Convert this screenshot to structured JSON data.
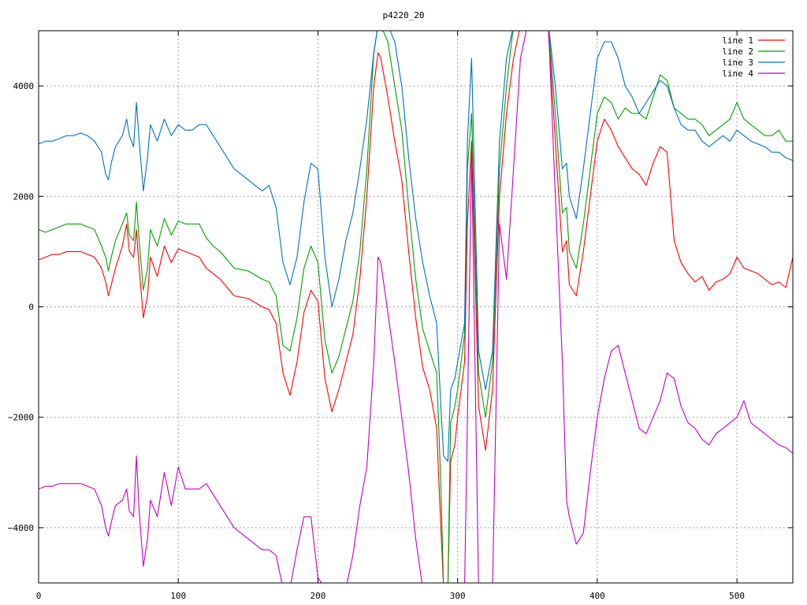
{
  "chart_data": {
    "type": "line",
    "title": "p4220_20",
    "xlabel": "",
    "ylabel": "",
    "xlim": [
      0,
      540
    ],
    "ylim": [
      -5000,
      5000
    ],
    "xticks": [
      0,
      100,
      200,
      300,
      400,
      500
    ],
    "yticks": [
      -4000,
      -2000,
      0,
      2000,
      4000
    ],
    "xtick_labels": [
      "0",
      "100",
      "200",
      "300",
      "400",
      "500"
    ],
    "ytick_labels": [
      "−4000",
      "−2000",
      "0",
      "2000",
      "4000"
    ],
    "grid": true,
    "legend_position": "top-right",
    "x": [
      0,
      5,
      10,
      15,
      20,
      25,
      30,
      35,
      40,
      45,
      48,
      50,
      52,
      55,
      60,
      63,
      65,
      68,
      70,
      72,
      75,
      78,
      80,
      85,
      90,
      95,
      100,
      105,
      110,
      115,
      120,
      125,
      130,
      140,
      150,
      160,
      165,
      170,
      175,
      180,
      185,
      190,
      195,
      200,
      205,
      210,
      215,
      220,
      225,
      230,
      235,
      240,
      243,
      245,
      250,
      255,
      260,
      265,
      270,
      275,
      280,
      285,
      288,
      290,
      293,
      295,
      298,
      300,
      305,
      307,
      310,
      315,
      320,
      325,
      330,
      335,
      340,
      345,
      350,
      355,
      360,
      365,
      370,
      375,
      378,
      380,
      385,
      390,
      395,
      400,
      405,
      410,
      415,
      420,
      425,
      430,
      435,
      440,
      445,
      450,
      455,
      460,
      465,
      470,
      475,
      480,
      485,
      490,
      495,
      500,
      505,
      510,
      515,
      520,
      525,
      530,
      535,
      540
    ],
    "series": [
      {
        "name": "line 1",
        "color": "#ff0000",
        "values": [
          850,
          900,
          950,
          950,
          1000,
          1000,
          1000,
          950,
          900,
          700,
          450,
          200,
          400,
          700,
          1100,
          1500,
          1000,
          900,
          1400,
          700,
          -200,
          200,
          900,
          550,
          1100,
          800,
          1050,
          1000,
          950,
          900,
          700,
          600,
          500,
          200,
          150,
          0,
          -50,
          -300,
          -1200,
          -1600,
          -1000,
          -100,
          300,
          100,
          -1300,
          -1900,
          -1500,
          -1000,
          -500,
          500,
          2000,
          4000,
          4600,
          4500,
          3800,
          3000,
          2300,
          1000,
          -200,
          -1100,
          -1500,
          -2200,
          -4000,
          -5100,
          -5100,
          -2800,
          -2500,
          -2000,
          -1000,
          1500,
          3000,
          -1800,
          -2600,
          -1500,
          2000,
          3500,
          4500,
          5100,
          5100,
          5100,
          5100,
          5000,
          3000,
          1000,
          1200,
          400,
          200,
          1000,
          2000,
          3000,
          3400,
          3200,
          2900,
          2700,
          2500,
          2400,
          2200,
          2600,
          2900,
          2800,
          1200,
          800,
          600,
          450,
          550,
          300,
          450,
          500,
          600,
          900,
          700,
          650,
          600,
          500,
          400,
          450,
          350,
          900
        ]
      },
      {
        "name": "line 2",
        "color": "#00a000",
        "values": [
          1400,
          1350,
          1400,
          1450,
          1500,
          1500,
          1500,
          1450,
          1400,
          1100,
          900,
          650,
          900,
          1200,
          1500,
          1700,
          1300,
          1200,
          1900,
          1200,
          300,
          700,
          1400,
          1100,
          1600,
          1300,
          1550,
          1500,
          1500,
          1500,
          1250,
          1100,
          1000,
          700,
          650,
          500,
          450,
          200,
          -700,
          -800,
          -200,
          700,
          1100,
          800,
          -600,
          -1200,
          -900,
          -400,
          100,
          1000,
          2500,
          4600,
          5100,
          5100,
          4800,
          4000,
          3200,
          1800,
          500,
          -400,
          -800,
          -1200,
          -3200,
          -5100,
          -5100,
          -2100,
          -1800,
          -1500,
          -500,
          2500,
          3500,
          -1200,
          -2000,
          -1000,
          2500,
          4000,
          5100,
          5100,
          5100,
          5100,
          5100,
          5100,
          3500,
          1700,
          1800,
          1000,
          700,
          1500,
          2500,
          3500,
          3800,
          3700,
          3400,
          3600,
          3500,
          3500,
          3400,
          3800,
          4200,
          4100,
          3600,
          3500,
          3400,
          3400,
          3300,
          3100,
          3200,
          3300,
          3400,
          3700,
          3400,
          3300,
          3200,
          3100,
          3100,
          3200,
          3000,
          3000
        ]
      },
      {
        "name": "line 3",
        "color": "#0070c0",
        "values": [
          2950,
          3000,
          3000,
          3050,
          3100,
          3100,
          3150,
          3100,
          3000,
          2800,
          2400,
          2300,
          2600,
          2900,
          3100,
          3400,
          3100,
          2900,
          3700,
          3000,
          2100,
          2700,
          3300,
          3000,
          3400,
          3100,
          3300,
          3200,
          3200,
          3300,
          3300,
          3100,
          2900,
          2500,
          2300,
          2100,
          2200,
          1800,
          800,
          400,
          900,
          1900,
          2600,
          2500,
          900,
          0,
          500,
          1200,
          1700,
          2500,
          3400,
          4600,
          5100,
          5100,
          5100,
          4800,
          4000,
          2700,
          1600,
          800,
          200,
          -300,
          -1800,
          -2700,
          -2800,
          -1500,
          -1300,
          -1000,
          -300,
          3000,
          4500,
          -800,
          -1500,
          -800,
          3000,
          4500,
          5100,
          5100,
          5100,
          5100,
          5100,
          5100,
          4000,
          2500,
          2600,
          2000,
          1600,
          2500,
          3500,
          4500,
          4800,
          4800,
          4500,
          4000,
          3800,
          3500,
          3700,
          3900,
          4100,
          4000,
          3600,
          3300,
          3200,
          3200,
          3000,
          2900,
          3000,
          3100,
          3000,
          3200,
          3100,
          3000,
          2950,
          2900,
          2800,
          2800,
          2700,
          2650
        ]
      },
      {
        "name": "line 4",
        "color": "#c000c0",
        "values": [
          -3300,
          -3250,
          -3250,
          -3200,
          -3200,
          -3200,
          -3200,
          -3250,
          -3300,
          -3600,
          -4000,
          -4150,
          -3900,
          -3600,
          -3500,
          -3300,
          -3700,
          -3800,
          -2700,
          -3700,
          -4700,
          -4200,
          -3500,
          -3800,
          -3000,
          -3600,
          -2900,
          -3300,
          -3300,
          -3300,
          -3200,
          -3400,
          -3600,
          -4000,
          -4200,
          -4400,
          -4400,
          -4500,
          -5100,
          -5100,
          -4400,
          -3800,
          -3800,
          -4900,
          -5100,
          -5100,
          -5100,
          -5100,
          -4500,
          -3600,
          -2900,
          -1000,
          900,
          800,
          -100,
          -1000,
          -2000,
          -3000,
          -4200,
          -5100,
          -5100,
          -5100,
          -5100,
          -5100,
          -5100,
          -5100,
          -5100,
          -5100,
          -5100,
          -2000,
          2800,
          -5100,
          -5100,
          -5100,
          1500,
          500,
          2500,
          4500,
          5100,
          5100,
          5100,
          5100,
          2000,
          -1000,
          -3500,
          -3800,
          -4300,
          -4100,
          -3000,
          -2000,
          -1300,
          -800,
          -700,
          -1200,
          -1700,
          -2200,
          -2300,
          -2000,
          -1700,
          -1200,
          -1300,
          -1800,
          -2100,
          -2200,
          -2400,
          -2500,
          -2300,
          -2200,
          -2100,
          -2000,
          -1700,
          -2100,
          -2200,
          -2300,
          -2400,
          -2500,
          -2550,
          -2650
        ]
      }
    ]
  }
}
